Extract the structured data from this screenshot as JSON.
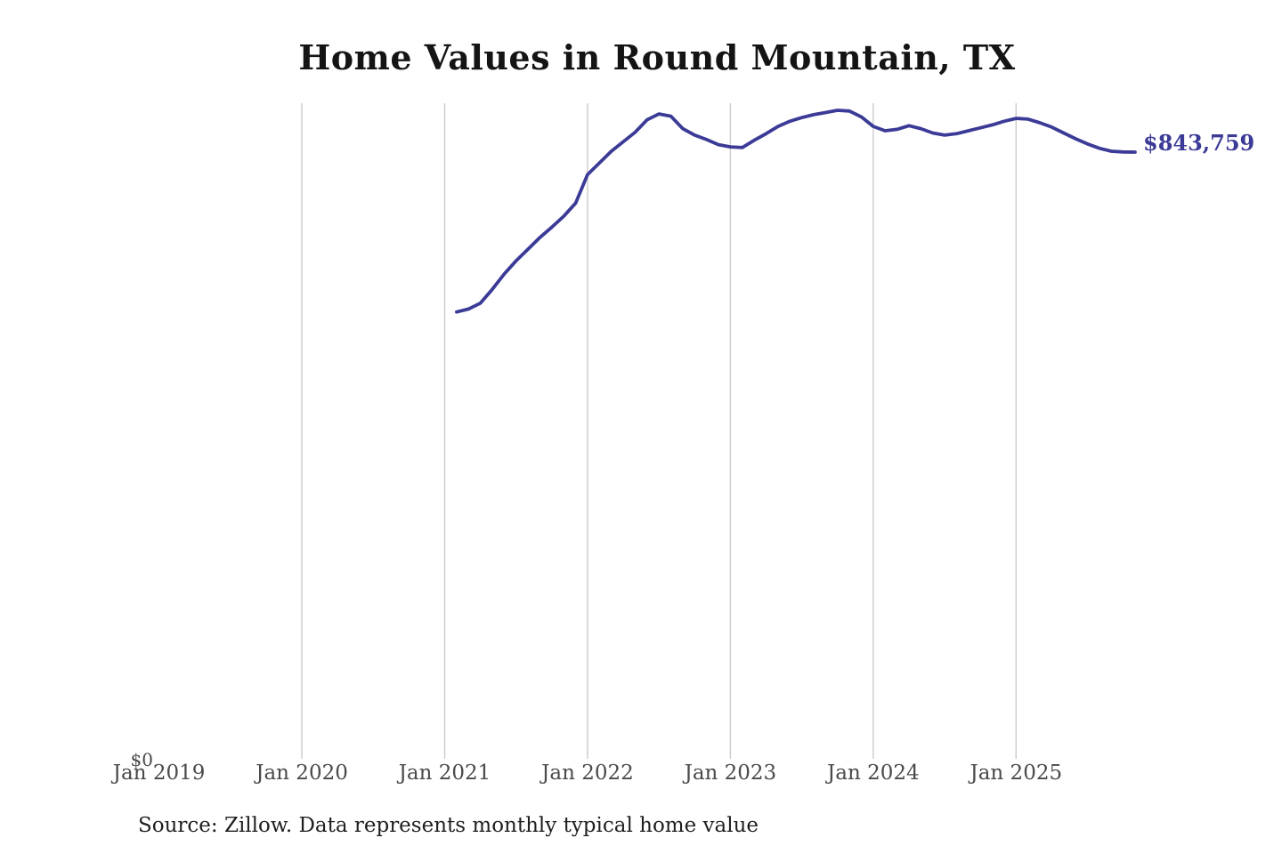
{
  "title": "Home Values in Round Mountain, TX",
  "source_note": "Source: Zillow. Data represents monthly typical home value",
  "colors": {
    "accent": "#3b3b97",
    "grid": "#cccccc",
    "tick_text": "#4a4a4a",
    "title_text": "#141414",
    "background": "#ffffff"
  },
  "chart_data": {
    "type": "line",
    "title": "Home Values in Round Mountain, TX",
    "xlabel": "",
    "ylabel": "",
    "grid": "vertical",
    "legend": "none",
    "xlim_years": [
      2019.0,
      2026.1
    ],
    "ylim": [
      0,
      912000
    ],
    "x_ticks": [
      {
        "year": 2019,
        "label": "Jan 2019"
      },
      {
        "year": 2020,
        "label": "Jan 2020"
      },
      {
        "year": 2021,
        "label": "Jan 2021"
      },
      {
        "year": 2022,
        "label": "Jan 2022"
      },
      {
        "year": 2023,
        "label": "Jan 2023"
      },
      {
        "year": 2024,
        "label": "Jan 2024"
      },
      {
        "year": 2025,
        "label": "Jan 2025"
      }
    ],
    "gridline_years": [
      2020,
      2021,
      2022,
      2023,
      2024,
      2025
    ],
    "y_ticks": [
      "$0"
    ],
    "end_label": "$843,759",
    "end_value": 843759,
    "series": [
      {
        "name": "Monthly typical home value",
        "points": [
          [
            "2021-02",
            625000
          ],
          [
            "2021-03",
            629000
          ],
          [
            "2021-04",
            637000
          ],
          [
            "2021-05",
            656000
          ],
          [
            "2021-06",
            677000
          ],
          [
            "2021-07",
            695000
          ],
          [
            "2021-08",
            711000
          ],
          [
            "2021-09",
            727000
          ],
          [
            "2021-10",
            741000
          ],
          [
            "2021-11",
            756000
          ],
          [
            "2021-12",
            774000
          ],
          [
            "2022-01",
            813000
          ],
          [
            "2022-02",
            829000
          ],
          [
            "2022-03",
            845000
          ],
          [
            "2022-04",
            858000
          ],
          [
            "2022-05",
            871000
          ],
          [
            "2022-06",
            888000
          ],
          [
            "2022-07",
            896000
          ],
          [
            "2022-08",
            893000
          ],
          [
            "2022-09",
            876000
          ],
          [
            "2022-10",
            867000
          ],
          [
            "2022-11",
            861000
          ],
          [
            "2022-12",
            854000
          ],
          [
            "2023-01",
            851000
          ],
          [
            "2023-02",
            850000
          ],
          [
            "2023-03",
            860000
          ],
          [
            "2023-04",
            869000
          ],
          [
            "2023-05",
            879000
          ],
          [
            "2023-06",
            886000
          ],
          [
            "2023-07",
            891000
          ],
          [
            "2023-08",
            895000
          ],
          [
            "2023-09",
            898000
          ],
          [
            "2023-10",
            901000
          ],
          [
            "2023-11",
            900000
          ],
          [
            "2023-12",
            892000
          ],
          [
            "2024-01",
            879000
          ],
          [
            "2024-02",
            873000
          ],
          [
            "2024-03",
            875000
          ],
          [
            "2024-04",
            880000
          ],
          [
            "2024-05",
            876000
          ],
          [
            "2024-06",
            870000
          ],
          [
            "2024-07",
            867000
          ],
          [
            "2024-08",
            869000
          ],
          [
            "2024-09",
            873000
          ],
          [
            "2024-10",
            877000
          ],
          [
            "2024-11",
            881000
          ],
          [
            "2024-12",
            886000
          ],
          [
            "2025-01",
            890000
          ],
          [
            "2025-02",
            889000
          ],
          [
            "2025-03",
            884000
          ],
          [
            "2025-04",
            878000
          ],
          [
            "2025-05",
            870000
          ],
          [
            "2025-06",
            862000
          ],
          [
            "2025-07",
            855000
          ],
          [
            "2025-08",
            849000
          ],
          [
            "2025-09",
            845000
          ],
          [
            "2025-10",
            844000
          ],
          [
            "2025-11",
            843759
          ]
        ]
      }
    ]
  }
}
